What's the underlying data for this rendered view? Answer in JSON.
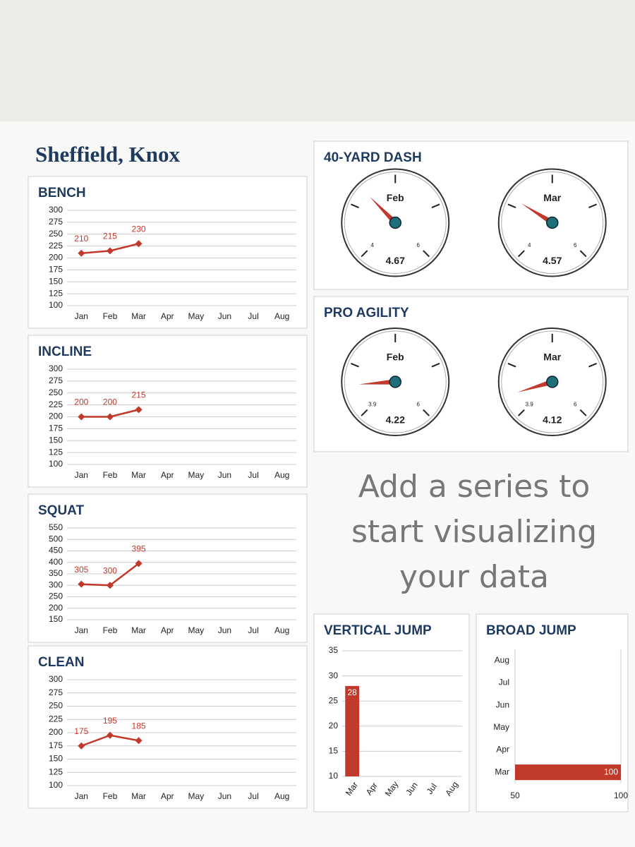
{
  "title": "Sheffield, Knox",
  "placeholder": "Add a series to start visualizing your data",
  "chart_data": [
    {
      "type": "line",
      "title": "BENCH",
      "categories": [
        "Jan",
        "Feb",
        "Mar",
        "Apr",
        "May",
        "Jun",
        "Jul",
        "Aug"
      ],
      "values": [
        210,
        215,
        230,
        null,
        null,
        null,
        null,
        null
      ],
      "color": "#c0392b",
      "ylim": [
        100,
        300
      ],
      "yticks": [
        100,
        125,
        150,
        175,
        200,
        225,
        250,
        275,
        300
      ],
      "grid": true
    },
    {
      "type": "line",
      "title": "INCLINE",
      "categories": [
        "Jan",
        "Feb",
        "Mar",
        "Apr",
        "May",
        "Jun",
        "Jul",
        "Aug"
      ],
      "values": [
        200,
        200,
        215,
        null,
        null,
        null,
        null,
        null
      ],
      "color": "#c0392b",
      "ylim": [
        100,
        300
      ],
      "yticks": [
        100,
        125,
        150,
        175,
        200,
        225,
        250,
        275,
        300
      ],
      "grid": true
    },
    {
      "type": "line",
      "title": "SQUAT",
      "categories": [
        "Jan",
        "Feb",
        "Mar",
        "Apr",
        "May",
        "Jun",
        "Jul",
        "Aug"
      ],
      "values": [
        305,
        300,
        395,
        null,
        null,
        null,
        null,
        null
      ],
      "color": "#c0392b",
      "ylim": [
        150,
        550
      ],
      "yticks": [
        150,
        200,
        250,
        300,
        350,
        400,
        450,
        500,
        550
      ],
      "grid": true
    },
    {
      "type": "line",
      "title": "CLEAN",
      "categories": [
        "Jan",
        "Feb",
        "Mar",
        "Apr",
        "May",
        "Jun",
        "Jul",
        "Aug"
      ],
      "values": [
        175,
        195,
        185,
        null,
        null,
        null,
        null,
        null
      ],
      "color": "#c0392b",
      "ylim": [
        100,
        300
      ],
      "yticks": [
        100,
        125,
        150,
        175,
        200,
        225,
        250,
        275,
        300
      ],
      "grid": true
    },
    {
      "type": "gauge",
      "title": "40-YARD DASH",
      "categories": [
        "Feb",
        "Mar"
      ],
      "values": [
        4.67,
        4.57
      ],
      "ylim": [
        4,
        6
      ],
      "yticks": [
        4,
        6
      ],
      "color": "#c0392b"
    },
    {
      "type": "gauge",
      "title": "PRO AGILITY",
      "categories": [
        "Feb",
        "Mar"
      ],
      "values": [
        4.22,
        4.12
      ],
      "ylim": [
        3.9,
        6
      ],
      "yticks": [
        3.9,
        6
      ],
      "color": "#c0392b"
    },
    {
      "type": "bar",
      "title": "VERTICAL JUMP",
      "categories": [
        "Mar",
        "Apr",
        "May",
        "Jun",
        "Jul",
        "Aug"
      ],
      "values": [
        28,
        null,
        null,
        null,
        null,
        null
      ],
      "color": "#c0392b",
      "ylim": [
        10,
        35
      ],
      "yticks": [
        10,
        15,
        20,
        25,
        30,
        35
      ],
      "grid": true
    },
    {
      "type": "hbar",
      "title": "BROAD JUMP",
      "categories": [
        "Mar",
        "Apr",
        "May",
        "Jun",
        "Jul",
        "Aug"
      ],
      "values": [
        100,
        null,
        null,
        null,
        null,
        null
      ],
      "color": "#c0392b",
      "xlim": [
        50,
        100
      ],
      "xticks": [
        50,
        100
      ],
      "grid": true
    }
  ]
}
